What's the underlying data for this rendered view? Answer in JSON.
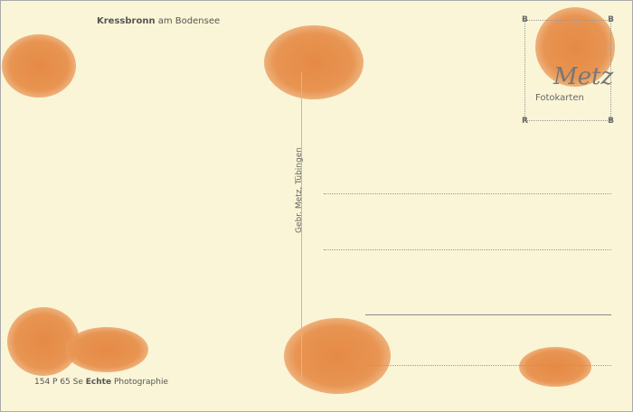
{
  "header": {
    "place_bold": "Kressbronn",
    "place_rest": " am Bodensee"
  },
  "publisher": "Gebr. Metz, Tübingen",
  "footer": {
    "code": "154 P 65 Se",
    "echte": "Echte",
    "photo": "Photographie"
  },
  "stamp_box": {
    "corner_letter_tl": "B",
    "corner_letter_tr": "B",
    "corner_letter_bl": "R",
    "corner_letter_br": "B",
    "brand": "Metz",
    "label": "Fotokarten"
  },
  "colors": {
    "paper": "#faf5d6",
    "stain": "#e58a45"
  }
}
